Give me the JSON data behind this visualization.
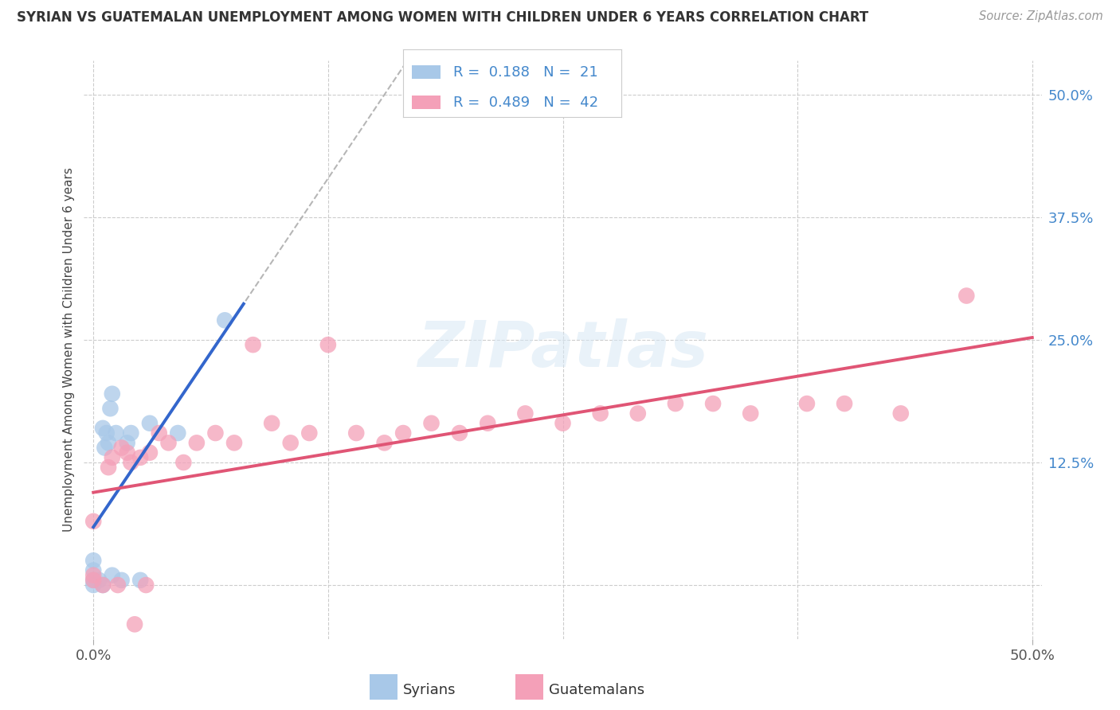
{
  "title": "SYRIAN VS GUATEMALAN UNEMPLOYMENT AMONG WOMEN WITH CHILDREN UNDER 6 YEARS CORRELATION CHART",
  "source": "Source: ZipAtlas.com",
  "ylabel": "Unemployment Among Women with Children Under 6 years",
  "xlim": [
    -0.005,
    0.505
  ],
  "ylim": [
    -0.055,
    0.535
  ],
  "grid_vals": [
    0.0,
    0.125,
    0.25,
    0.375,
    0.5
  ],
  "xtick_vals": [
    0.0,
    0.5
  ],
  "xtick_labels": [
    "0.0%",
    "50.0%"
  ],
  "ytick_vals": [
    0.125,
    0.25,
    0.375,
    0.5
  ],
  "ytick_labels": [
    "12.5%",
    "25.0%",
    "37.5%",
    "50.0%"
  ],
  "syrians_color": "#a8c8e8",
  "guatemalans_color": "#f4a0b8",
  "line_syrian_color": "#3366cc",
  "line_guatemalan_color": "#e05575",
  "dashed_color": "#aaaaaa",
  "tick_color": "#4488cc",
  "background": "#ffffff",
  "R_syrian": 0.188,
  "N_syrian": 21,
  "R_guatemalan": 0.489,
  "N_guatemalan": 42,
  "watermark_text": "ZIPatlas",
  "legend_label_1": "Syrians",
  "legend_label_2": "Guatemalans",
  "syrian_x": [
    0.0,
    0.0,
    0.0,
    0.0,
    0.003,
    0.005,
    0.005,
    0.006,
    0.007,
    0.008,
    0.009,
    0.01,
    0.01,
    0.012,
    0.015,
    0.018,
    0.02,
    0.025,
    0.03,
    0.045,
    0.07
  ],
  "syrian_y": [
    0.0,
    0.005,
    0.015,
    0.025,
    0.005,
    0.0,
    0.16,
    0.14,
    0.155,
    0.145,
    0.18,
    0.01,
    0.195,
    0.155,
    0.005,
    0.145,
    0.155,
    0.005,
    0.165,
    0.155,
    0.27
  ],
  "guatemalan_x": [
    0.0,
    0.0,
    0.0,
    0.005,
    0.008,
    0.01,
    0.013,
    0.015,
    0.018,
    0.02,
    0.022,
    0.025,
    0.028,
    0.03,
    0.035,
    0.04,
    0.048,
    0.055,
    0.065,
    0.075,
    0.085,
    0.095,
    0.105,
    0.115,
    0.125,
    0.14,
    0.155,
    0.165,
    0.18,
    0.195,
    0.21,
    0.23,
    0.25,
    0.27,
    0.29,
    0.31,
    0.33,
    0.35,
    0.38,
    0.4,
    0.43,
    0.465
  ],
  "guatemalan_y": [
    0.005,
    0.01,
    0.065,
    0.0,
    0.12,
    0.13,
    0.0,
    0.14,
    0.135,
    0.125,
    -0.04,
    0.13,
    0.0,
    0.135,
    0.155,
    0.145,
    0.125,
    0.145,
    0.155,
    0.145,
    0.245,
    0.165,
    0.145,
    0.155,
    0.245,
    0.155,
    0.145,
    0.155,
    0.165,
    0.155,
    0.165,
    0.175,
    0.165,
    0.175,
    0.175,
    0.185,
    0.185,
    0.175,
    0.185,
    0.185,
    0.175,
    0.295
  ]
}
